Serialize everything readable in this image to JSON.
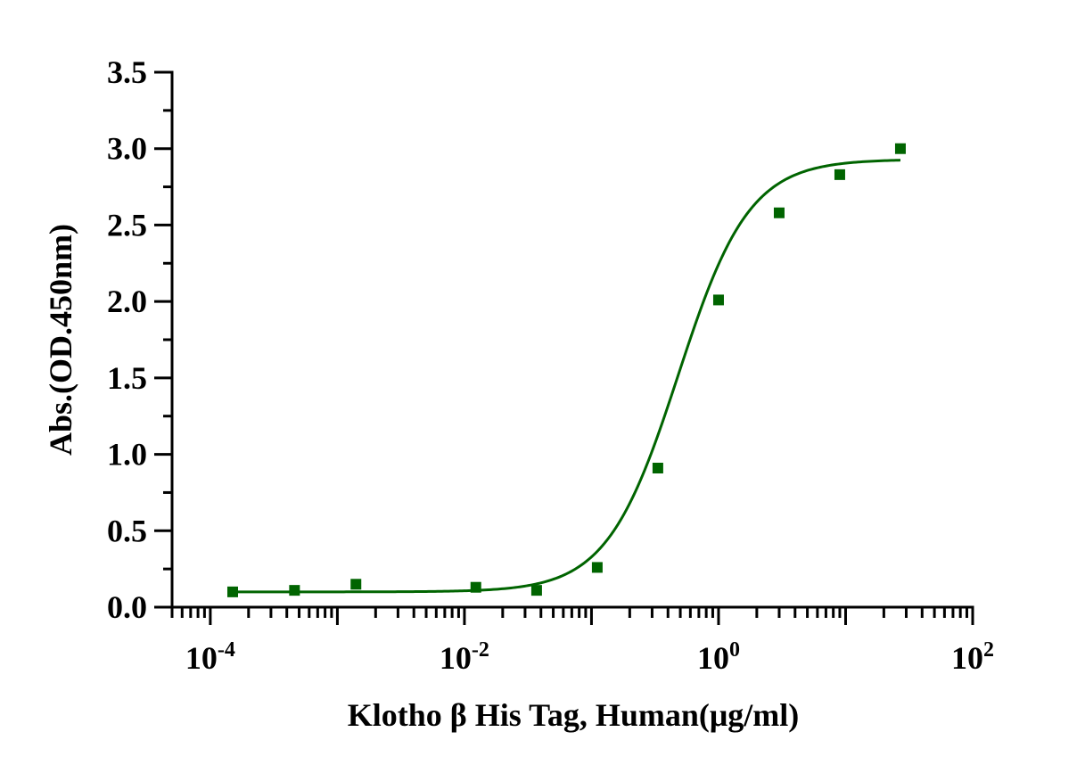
{
  "chart_data": {
    "type": "scatter",
    "title": "",
    "xlabel": "Klotho β His Tag, Human(μg/ml)",
    "ylabel": "Abs.(OD.450nm)",
    "x_scale": "log",
    "xlim": [
      5e-05,
      100
    ],
    "ylim": [
      0,
      3.5
    ],
    "y_ticks": [
      "0.0",
      "0.5",
      "1.0",
      "1.5",
      "2.0",
      "2.5",
      "3.0",
      "3.5"
    ],
    "x_ticks": [
      {
        "base": "10",
        "exp": "-4",
        "value": 0.0001
      },
      {
        "base": "10",
        "exp": "-2",
        "value": 0.01
      },
      {
        "base": "10",
        "exp": "0",
        "value": 1
      },
      {
        "base": "10",
        "exp": "2",
        "value": 100
      }
    ],
    "grid": false,
    "legend": "none",
    "color": "#006400",
    "series": [
      {
        "marker": "square",
        "x": [
          0.00015,
          0.00046,
          0.0014,
          0.0123,
          0.037,
          0.111,
          0.333,
          1.0,
          3.0,
          9.0,
          27.0
        ],
        "y": [
          0.1,
          0.11,
          0.15,
          0.13,
          0.11,
          0.26,
          0.91,
          2.01,
          2.58,
          2.83,
          3.0
        ]
      }
    ],
    "fit": {
      "model": "4PL",
      "bottom": 0.1,
      "top": 2.93,
      "ec50": 0.48,
      "hill": 1.55,
      "x_range": [
        0.00015,
        27.0
      ]
    }
  }
}
